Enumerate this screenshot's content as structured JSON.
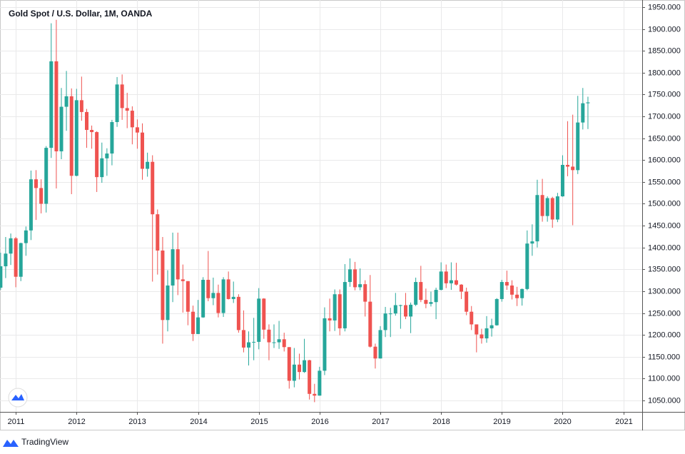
{
  "chart_data": {
    "type": "candlestick",
    "title": "Gold Spot / U.S. Dollar, 1M, OANDA",
    "brand": "TradingView",
    "up_color": "#26a69a",
    "down_color": "#ef5350",
    "x": [
      2010.75,
      2010.833,
      2010.917,
      2011,
      2011.083,
      2011.167,
      2011.25,
      2011.333,
      2011.417,
      2011.5,
      2011.583,
      2011.667,
      2011.75,
      2011.833,
      2011.917,
      2012,
      2012.083,
      2012.167,
      2012.25,
      2012.333,
      2012.417,
      2012.5,
      2012.583,
      2012.667,
      2012.75,
      2012.833,
      2012.917,
      2013,
      2013.083,
      2013.167,
      2013.25,
      2013.333,
      2013.417,
      2013.5,
      2013.583,
      2013.667,
      2013.75,
      2013.833,
      2013.917,
      2014,
      2014.083,
      2014.167,
      2014.25,
      2014.333,
      2014.417,
      2014.5,
      2014.583,
      2014.667,
      2014.75,
      2014.833,
      2014.917,
      2015,
      2015.083,
      2015.167,
      2015.25,
      2015.333,
      2015.417,
      2015.5,
      2015.583,
      2015.667,
      2015.75,
      2015.833,
      2015.917,
      2016,
      2016.083,
      2016.167,
      2016.25,
      2016.333,
      2016.417,
      2016.5,
      2016.583,
      2016.667,
      2016.75,
      2016.833,
      2016.917,
      2017,
      2017.083,
      2017.167,
      2017.25,
      2017.333,
      2017.417,
      2017.5,
      2017.583,
      2017.667,
      2017.75,
      2017.833,
      2017.917,
      2018,
      2018.083,
      2018.167,
      2018.25,
      2018.333,
      2018.417,
      2018.5,
      2018.583,
      2018.667,
      2018.75,
      2018.833,
      2018.917,
      2019,
      2019.083,
      2019.167,
      2019.25,
      2019.333,
      2019.417,
      2019.5,
      2019.583,
      2019.667,
      2019.75,
      2019.833,
      2019.917,
      2020,
      2020.083,
      2020.167,
      2020.25,
      2020.333,
      2020.417
    ],
    "open": [
      1308,
      1357,
      1386,
      1421,
      1333,
      1410,
      1439,
      1556,
      1536,
      1500,
      1628,
      1826,
      1620,
      1722,
      1746,
      1564,
      1737,
      1710,
      1669,
      1664,
      1561,
      1604,
      1615,
      1687,
      1773,
      1719,
      1713,
      1675,
      1663,
      1580,
      1596,
      1476,
      1393,
      1234,
      1313,
      1396,
      1327,
      1323,
      1253,
      1202,
      1240,
      1326,
      1284,
      1296,
      1250,
      1327,
      1282,
      1287,
      1211,
      1171,
      1183,
      1184,
      1283,
      1212,
      1183,
      1183,
      1190,
      1172,
      1095,
      1132,
      1115,
      1142,
      1065,
      1061,
      1118,
      1238,
      1233,
      1293,
      1215,
      1321,
      1350,
      1309,
      1316,
      1276,
      1173,
      1146,
      1211,
      1249,
      1249,
      1268,
      1268,
      1242,
      1269,
      1321,
      1280,
      1271,
      1275,
      1303,
      1345,
      1318,
      1325,
      1315,
      1299,
      1253,
      1224,
      1201,
      1192,
      1215,
      1222,
      1282,
      1321,
      1313,
      1292,
      1284,
      1305,
      1409,
      1414,
      1520,
      1472,
      1513,
      1464,
      1517,
      1589,
      1585,
      1577,
      1686,
      1730
    ],
    "high": [
      1388,
      1424,
      1432,
      1424,
      1411,
      1448,
      1576,
      1577,
      1556,
      1632,
      1913,
      1921,
      1765,
      1804,
      1764,
      1763,
      1791,
      1717,
      1679,
      1666,
      1640,
      1627,
      1692,
      1790,
      1796,
      1754,
      1723,
      1693,
      1684,
      1617,
      1611,
      1487,
      1424,
      1348,
      1434,
      1434,
      1361,
      1323,
      1267,
      1280,
      1332,
      1392,
      1331,
      1315,
      1332,
      1345,
      1322,
      1293,
      1256,
      1208,
      1239,
      1307,
      1284,
      1224,
      1224,
      1232,
      1205,
      1172,
      1170,
      1157,
      1191,
      1143,
      1088,
      1127,
      1263,
      1283,
      1304,
      1304,
      1362,
      1375,
      1367,
      1352,
      1325,
      1337,
      1180,
      1220,
      1264,
      1262,
      1296,
      1269,
      1296,
      1274,
      1331,
      1358,
      1306,
      1299,
      1308,
      1366,
      1361,
      1366,
      1365,
      1316,
      1308,
      1266,
      1224,
      1214,
      1243,
      1237,
      1284,
      1326,
      1347,
      1325,
      1310,
      1306,
      1439,
      1453,
      1555,
      1557,
      1517,
      1516,
      1525,
      1611,
      1689,
      1704,
      1747,
      1765,
      1745
    ],
    "low": [
      1303,
      1330,
      1360,
      1309,
      1323,
      1381,
      1417,
      1463,
      1478,
      1480,
      1605,
      1535,
      1602,
      1667,
      1522,
      1563,
      1690,
      1628,
      1626,
      1527,
      1548,
      1564,
      1588,
      1676,
      1692,
      1673,
      1636,
      1626,
      1555,
      1562,
      1322,
      1338,
      1180,
      1208,
      1275,
      1291,
      1251,
      1222,
      1186,
      1202,
      1239,
      1277,
      1268,
      1240,
      1241,
      1281,
      1273,
      1205,
      1160,
      1130,
      1142,
      1167,
      1191,
      1142,
      1170,
      1168,
      1162,
      1077,
      1080,
      1098,
      1113,
      1052,
      1046,
      1061,
      1108,
      1208,
      1209,
      1199,
      1208,
      1310,
      1302,
      1302,
      1242,
      1171,
      1123,
      1146,
      1195,
      1195,
      1244,
      1214,
      1236,
      1204,
      1266,
      1275,
      1261,
      1265,
      1236,
      1302,
      1307,
      1303,
      1313,
      1282,
      1245,
      1211,
      1160,
      1180,
      1182,
      1196,
      1221,
      1276,
      1303,
      1281,
      1266,
      1267,
      1302,
      1381,
      1400,
      1459,
      1459,
      1445,
      1458,
      1516,
      1563,
      1451,
      1568,
      1670,
      1671
    ],
    "close": [
      1357,
      1386,
      1421,
      1333,
      1410,
      1439,
      1556,
      1536,
      1500,
      1628,
      1826,
      1620,
      1722,
      1746,
      1564,
      1737,
      1710,
      1669,
      1664,
      1561,
      1604,
      1615,
      1687,
      1773,
      1719,
      1713,
      1675,
      1663,
      1580,
      1596,
      1476,
      1393,
      1234,
      1313,
      1396,
      1327,
      1323,
      1253,
      1202,
      1240,
      1326,
      1284,
      1296,
      1250,
      1327,
      1282,
      1287,
      1211,
      1171,
      1183,
      1184,
      1283,
      1212,
      1183,
      1183,
      1190,
      1172,
      1095,
      1132,
      1115,
      1142,
      1065,
      1061,
      1118,
      1238,
      1233,
      1293,
      1215,
      1321,
      1350,
      1309,
      1316,
      1276,
      1173,
      1146,
      1211,
      1249,
      1249,
      1268,
      1268,
      1242,
      1269,
      1321,
      1280,
      1271,
      1275,
      1303,
      1345,
      1318,
      1325,
      1315,
      1299,
      1253,
      1224,
      1201,
      1192,
      1215,
      1222,
      1282,
      1321,
      1313,
      1292,
      1284,
      1305,
      1409,
      1414,
      1520,
      1472,
      1513,
      1464,
      1517,
      1589,
      1585,
      1577,
      1686,
      1730,
      1732
    ],
    "xlim": [
      2010.74,
      2021.31
    ],
    "xticks": [
      2011,
      2012,
      2013,
      2014,
      2015,
      2016,
      2017,
      2018,
      2019,
      2020,
      2021
    ],
    "ylim": [
      1023.8,
      1966.3
    ],
    "yticks": [
      {
        "value": 1050,
        "label": "1050.000"
      },
      {
        "value": 1100,
        "label": "1100.000"
      },
      {
        "value": 1150,
        "label": "1150.000"
      },
      {
        "value": 1200,
        "label": "1200.000"
      },
      {
        "value": 1250,
        "label": "1250.000"
      },
      {
        "value": 1300,
        "label": "1300.000"
      },
      {
        "value": 1350,
        "label": "1350.000"
      },
      {
        "value": 1400,
        "label": "1400.000"
      },
      {
        "value": 1450,
        "label": "1450.000"
      },
      {
        "value": 1500,
        "label": "1500.000"
      },
      {
        "value": 1550,
        "label": "1550.000"
      },
      {
        "value": 1600,
        "label": "1600.000"
      },
      {
        "value": 1650,
        "label": "1650.000"
      },
      {
        "value": 1700,
        "label": "1700.000"
      },
      {
        "value": 1750,
        "label": "1750.000"
      },
      {
        "value": 1800,
        "label": "1800.000"
      },
      {
        "value": 1850,
        "label": "1850.000"
      },
      {
        "value": 1900,
        "label": "1900.000"
      },
      {
        "value": 1950,
        "label": "1950.000"
      }
    ]
  }
}
